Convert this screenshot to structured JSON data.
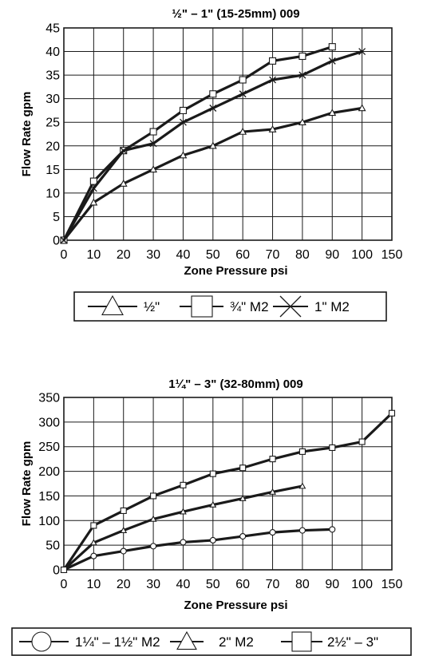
{
  "chart_data": [
    {
      "type": "line",
      "title": "½\" – 1\" (15-25mm) 009",
      "xlabel": "Zone Pressure psi",
      "ylabel": "Flow Rate gpm",
      "xticks": [
        "0",
        "10",
        "20",
        "30",
        "40",
        "50",
        "60",
        "70",
        "80",
        "90",
        "100",
        "150"
      ],
      "xlim": [
        0,
        110
      ],
      "ylim": [
        0,
        45
      ],
      "yticks": [
        0,
        5,
        10,
        15,
        20,
        25,
        30,
        35,
        40,
        45
      ],
      "grid": true,
      "legend_position": "bottom",
      "series": [
        {
          "name": "½\"",
          "marker": "triangle",
          "x": [
            0,
            10,
            20,
            30,
            40,
            50,
            60,
            70,
            80,
            90,
            100
          ],
          "y": [
            0,
            8,
            12,
            15,
            18,
            20,
            23,
            23.5,
            25,
            27,
            28
          ]
        },
        {
          "name": "¾\" M2",
          "marker": "square",
          "x": [
            0,
            10,
            20,
            30,
            40,
            50,
            60,
            70,
            80,
            90
          ],
          "y": [
            0,
            12.5,
            19,
            23,
            27.5,
            31,
            34,
            38,
            39,
            41
          ]
        },
        {
          "name": "1\" M2",
          "marker": "x",
          "x": [
            0,
            10,
            20,
            30,
            40,
            50,
            60,
            70,
            80,
            90,
            100
          ],
          "y": [
            0,
            11,
            19,
            20.5,
            25,
            28,
            31,
            34,
            35,
            38,
            40
          ]
        }
      ]
    },
    {
      "type": "line",
      "title": "1¼\" – 3\" (32-80mm) 009",
      "xlabel": "Zone Pressure psi",
      "ylabel": "Flow Rate gpm",
      "xticks": [
        "0",
        "10",
        "20",
        "30",
        "40",
        "50",
        "60",
        "70",
        "80",
        "90",
        "100",
        "150"
      ],
      "xlim": [
        0,
        110
      ],
      "ylim": [
        0,
        350
      ],
      "yticks": [
        0,
        50,
        100,
        150,
        200,
        250,
        300,
        350
      ],
      "grid": true,
      "legend_position": "bottom",
      "series": [
        {
          "name": "1¼\" – 1½\" M2",
          "marker": "circle",
          "x": [
            0,
            10,
            20,
            30,
            40,
            50,
            60,
            70,
            80,
            90
          ],
          "y": [
            0,
            28,
            38,
            48,
            56,
            60,
            68,
            76,
            80,
            82
          ]
        },
        {
          "name": "2\" M2",
          "marker": "triangle",
          "x": [
            0,
            10,
            20,
            30,
            40,
            50,
            60,
            70,
            80
          ],
          "y": [
            0,
            55,
            80,
            103,
            118,
            132,
            145,
            158,
            170
          ]
        },
        {
          "name": "2½\" – 3\"",
          "marker": "square",
          "x": [
            0,
            10,
            20,
            30,
            40,
            50,
            60,
            70,
            80,
            90,
            100,
            110
          ],
          "y": [
            0,
            90,
            120,
            150,
            172,
            195,
            207,
            225,
            240,
            248,
            260,
            318
          ]
        }
      ]
    }
  ]
}
